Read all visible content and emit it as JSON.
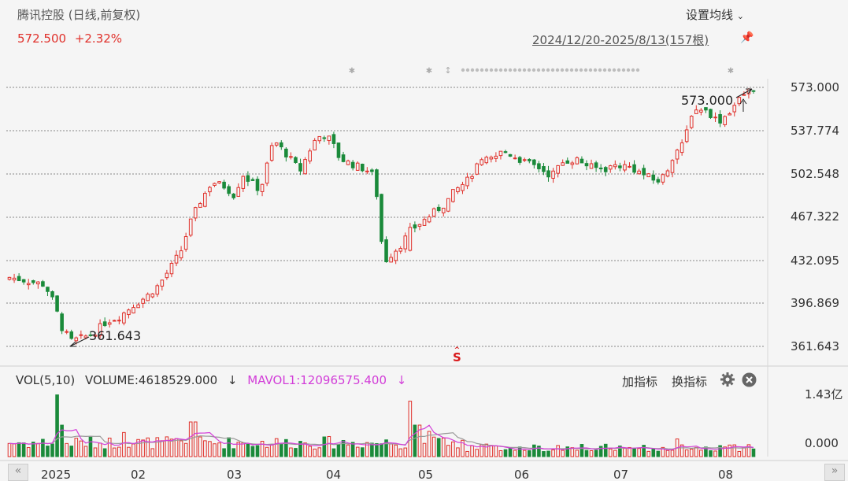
{
  "header": {
    "title": "腾讯控股 (日线,前复权)",
    "setting_label": "设置均线",
    "price": "572.500",
    "change": "+2.32%",
    "range": "2024/12/20-2025/8/13(157根)"
  },
  "price_axis": {
    "ticks": [
      "573.000",
      "537.774",
      "502.548",
      "467.322",
      "432.095",
      "396.869",
      "361.643"
    ]
  },
  "annotations": {
    "high": "573.000",
    "low": "361.643",
    "signal": "S"
  },
  "volume_panel": {
    "indicator": "VOL(5,10)",
    "volume": "VOLUME:4618529.000",
    "volume_arrow": "↓",
    "mavol": "MAVOL1:12096575.400",
    "mavol_arrow": "↓",
    "add_indicator": "加指标",
    "switch_indicator": "换指标",
    "ticks": [
      "1.43亿",
      "0.000"
    ]
  },
  "x_axis": {
    "labels": [
      "2025",
      "02",
      "03",
      "04",
      "05",
      "06",
      "07",
      "08"
    ]
  },
  "colors": {
    "up": "#e0312b",
    "down": "#1a8a3a",
    "ma5": "#d23ed8",
    "ma10": "#999999",
    "grid": "#888888"
  },
  "chart_data": {
    "type": "candlestick",
    "title": "腾讯控股 (日线,前复权)",
    "ylim": [
      361.643,
      573.0
    ],
    "close_series_approx": [
      {
        "period": "2024-12 end",
        "close": 418
      },
      {
        "period": "2025-01 low",
        "close": 363
      },
      {
        "period": "2025-01 end",
        "close": 400
      },
      {
        "period": "2025-02 mid",
        "close": 500
      },
      {
        "period": "2025-02 end",
        "close": 485
      },
      {
        "period": "2025-03 high",
        "close": 540
      },
      {
        "period": "2025-03 end",
        "close": 495
      },
      {
        "period": "2025-04 low",
        "close": 430
      },
      {
        "period": "2025-04 end",
        "close": 480
      },
      {
        "period": "2025-05 mid",
        "close": 520
      },
      {
        "period": "2025-06",
        "close": 505
      },
      {
        "period": "2025-07 mid",
        "close": 500
      },
      {
        "period": "2025-07 end",
        "close": 555
      },
      {
        "period": "2025-08-13",
        "close": 572.5
      }
    ],
    "volume_ylim": [
      0,
      143000000
    ]
  }
}
